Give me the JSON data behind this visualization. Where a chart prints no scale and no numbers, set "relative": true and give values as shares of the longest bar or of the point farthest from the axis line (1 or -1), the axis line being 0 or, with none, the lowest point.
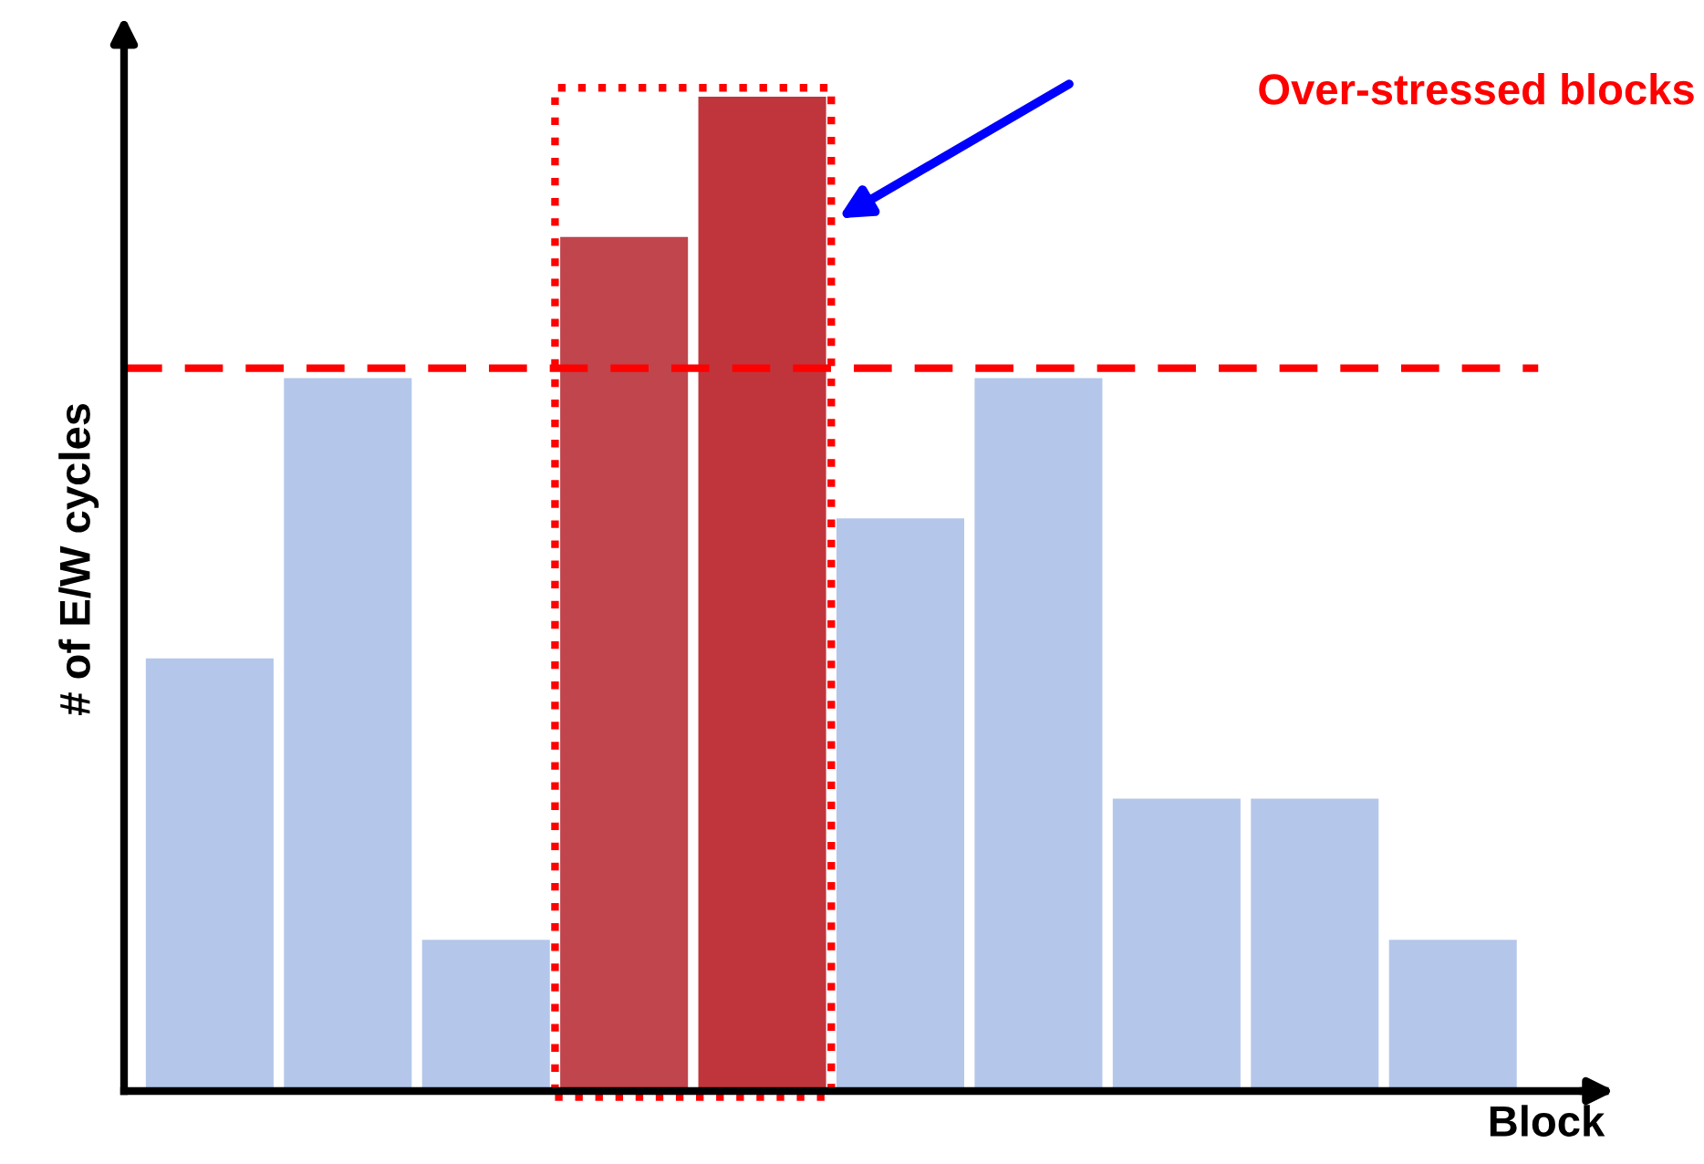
{
  "chart_data": {
    "type": "bar",
    "relative": true,
    "xlabel": "Block",
    "ylabel": "# of E/W cycles",
    "categories": [
      null,
      null,
      null,
      null,
      null,
      null,
      null,
      null,
      null,
      null
    ],
    "values": [
      0.435,
      0.717,
      0.152,
      0.859,
      1,
      0.576,
      0.717,
      0.294,
      0.294,
      0.152
    ],
    "colors": [
      "#b4c7ea",
      "#b4c7ea",
      "#b4c7ea",
      "#c0454c",
      "#c0353c",
      "#b4c7ea",
      "#b4c7ea",
      "#b4c7ea",
      "#b4c7ea",
      "#b4c7ea"
    ],
    "ref_lines": [
      {
        "axis": "y",
        "value": 0.727,
        "color": "#ff0000",
        "line_style": "dashed"
      }
    ],
    "annotations": [
      "Over-stressed blocks"
    ],
    "grid": false
  }
}
